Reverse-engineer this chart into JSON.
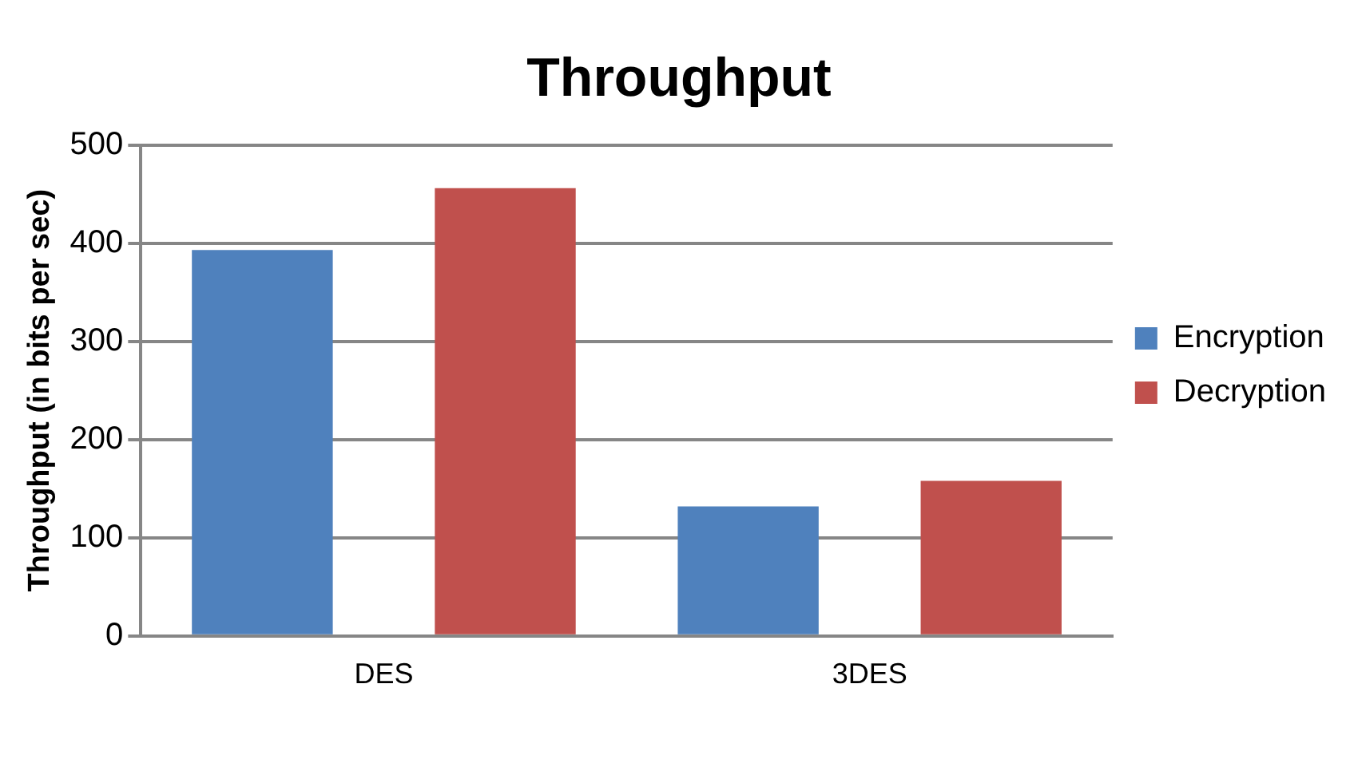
{
  "chart_data": {
    "type": "bar",
    "title": "Throughput",
    "ylabel": "Throughput (in bits per sec)",
    "categories": [
      "DES",
      "3DES"
    ],
    "series": [
      {
        "name": "Encryption",
        "color": "#4f81bd",
        "values": [
          393,
          132
        ]
      },
      {
        "name": "Decryption",
        "color": "#c0504d",
        "values": [
          456,
          158
        ]
      }
    ],
    "ylim": [
      0,
      500
    ],
    "yticks": [
      0,
      100,
      200,
      300,
      400,
      500
    ],
    "grid": "y",
    "legend": "right"
  }
}
